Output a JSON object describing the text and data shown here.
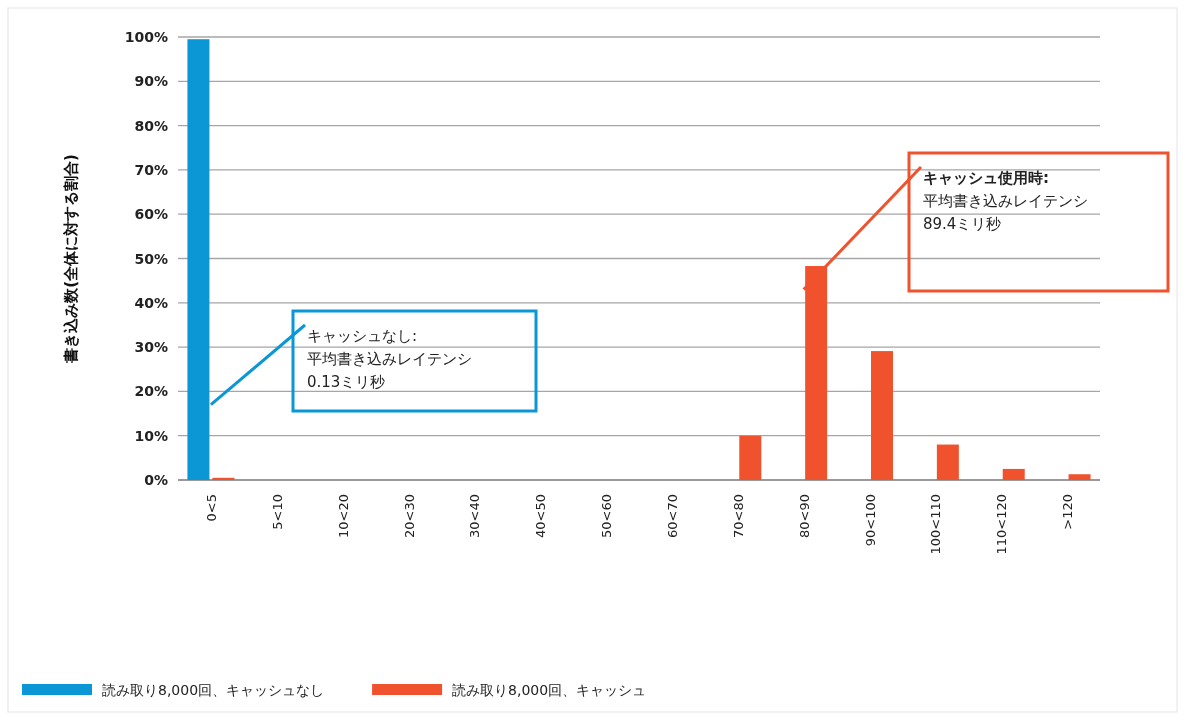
{
  "chart_data": {
    "type": "bar",
    "ylabel": "書き込み数(全体に対する割合)",
    "categories": [
      "0<5",
      "5<10",
      "10<20",
      "20<30",
      "30<40",
      "40<50",
      "50<60",
      "60<70",
      "70<80",
      "80<90",
      "90<100",
      "100<110",
      "110<120",
      ">120"
    ],
    "series": [
      {
        "name": "読み取り8,000回、キャッシュなし",
        "color": "#0b96d6",
        "values": [
          99.5,
          0,
          0,
          0,
          0,
          0,
          0,
          0,
          0,
          0,
          0,
          0,
          0,
          0
        ]
      },
      {
        "name": "読み取り8,000回、キャッシュ",
        "color": "#f0522e",
        "values": [
          0.5,
          0,
          0,
          0,
          0,
          0,
          0,
          0,
          10,
          48.3,
          29.1,
          8,
          2.5,
          1.3
        ]
      }
    ],
    "ylim": [
      0,
      100
    ],
    "yticks": [
      {
        "value": 0,
        "label": "0%"
      },
      {
        "value": 10,
        "label": "10%"
      },
      {
        "value": 20,
        "label": "20%"
      },
      {
        "value": 30,
        "label": "30%"
      },
      {
        "value": 40,
        "label": "40%"
      },
      {
        "value": 50,
        "label": "50%"
      },
      {
        "value": 60,
        "label": "60%"
      },
      {
        "value": 70,
        "label": "70%"
      },
      {
        "value": 80,
        "label": "80%"
      },
      {
        "value": 90,
        "label": "90%"
      },
      {
        "value": 100,
        "label": "100%"
      }
    ],
    "grid": "y",
    "legend": "bottom left",
    "annotations": [
      {
        "text": "キャッシュなし:\n平均書き込みレイテンシ\n0.13ミリ秒",
        "x": "0<5",
        "y": 17
      },
      {
        "text": "キャッシュ使用時:\n平均書き込みレイテンシ\n89.4ミリ秒",
        "x": "80<90",
        "y": 43
      }
    ]
  }
}
